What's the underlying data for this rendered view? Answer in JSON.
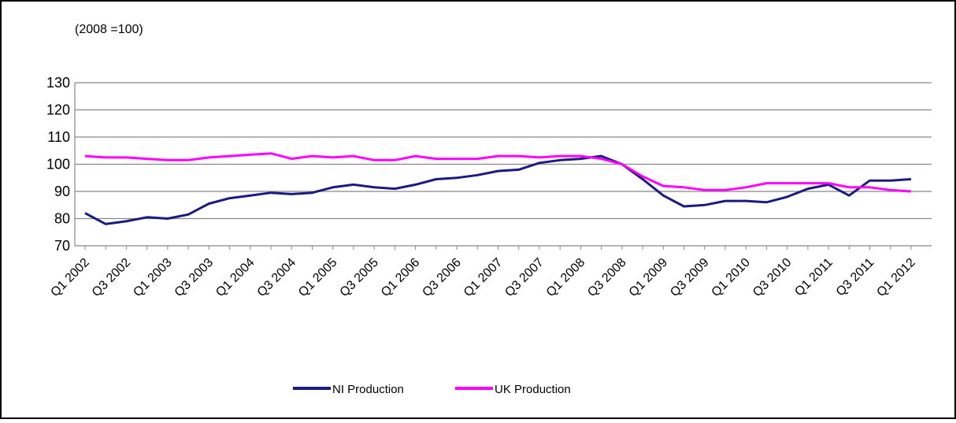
{
  "chart_data": {
    "type": "line",
    "subtitle": "(2008 =100)",
    "categories": [
      "Q1 2002",
      null,
      "Q3 2002",
      null,
      "Q1 2003",
      null,
      "Q3 2003",
      null,
      "Q1 2004",
      null,
      "Q3 2004",
      null,
      "Q1 2005",
      null,
      "Q3 2005",
      null,
      "Q1 2006",
      null,
      "Q3 2006",
      null,
      "Q1 2007",
      null,
      "Q3 2007",
      null,
      "Q1 2008",
      null,
      "Q3 2008",
      null,
      "Q1 2009",
      null,
      "Q3 2009",
      null,
      "Q1 2010",
      null,
      "Q3 2010",
      null,
      "Q1 2011",
      null,
      "Q3 2011",
      null,
      "Q1 2012"
    ],
    "series": [
      {
        "name": "NI Production",
        "color": "#1a1a80",
        "values": [
          82,
          78,
          79,
          80.5,
          80,
          81.5,
          85.5,
          87.5,
          88.5,
          89.5,
          89,
          89.5,
          91.5,
          92.5,
          91.5,
          91,
          92.5,
          94.5,
          95,
          96,
          97.5,
          98,
          100.5,
          101.5,
          102,
          103,
          100,
          94.5,
          88.5,
          84.5,
          85,
          86.5,
          86.5,
          86,
          88,
          91,
          92.5,
          88.5,
          94,
          94,
          94.5
        ]
      },
      {
        "name": "UK Production",
        "color": "#ff00ff",
        "values": [
          103,
          102.5,
          102.5,
          102,
          101.5,
          101.5,
          102.5,
          103,
          103.5,
          104,
          102,
          103,
          102.5,
          103,
          101.5,
          101.5,
          103,
          102,
          102,
          102,
          103,
          103,
          102.5,
          103,
          103,
          102,
          100,
          95.5,
          92,
          91.5,
          90.5,
          90.5,
          91.5,
          93,
          93,
          93,
          93,
          91.5,
          91.5,
          90.5,
          90
        ]
      }
    ],
    "ylim": [
      70,
      130
    ],
    "yticks": [
      70,
      80,
      90,
      100,
      110,
      120,
      130
    ],
    "grid": true,
    "legend": "bottom"
  }
}
